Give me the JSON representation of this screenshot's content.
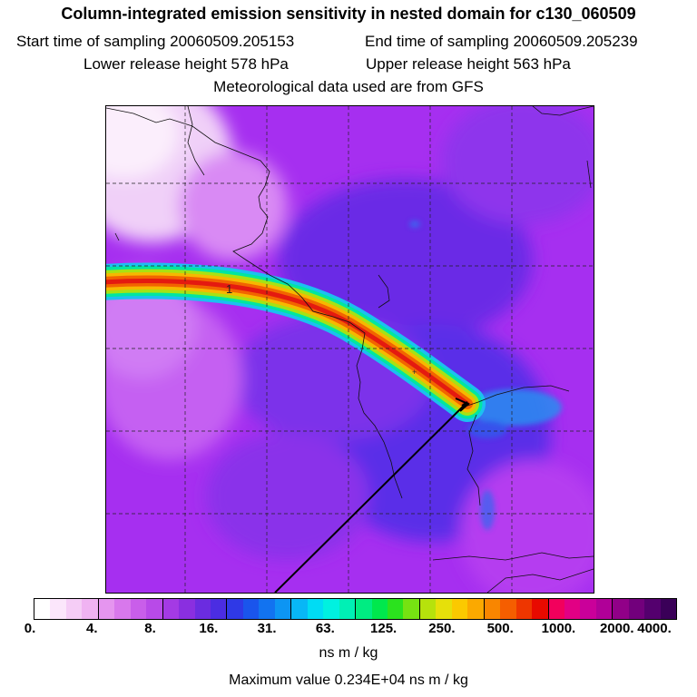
{
  "title": "Column-integrated emission sensitivity in nested domain for c130_060509",
  "start_label": "Start time of sampling 20060509.205153",
  "end_label": "End time of sampling 20060509.205239",
  "lower_label": "Lower release height  578 hPa",
  "upper_label": "Upper release height  563 hPa",
  "met_label": "Meteorological data used are from GFS",
  "map": {
    "contour_label": "1"
  },
  "colorbar": {
    "colors": [
      "#ffffff",
      "#fbe6fb",
      "#f5cdf6",
      "#f0b3f2",
      "#e595ef",
      "#d878ec",
      "#c95eea",
      "#b84ae8",
      "#a43ae4",
      "#8a2fe0",
      "#6b2ce0",
      "#4b2de2",
      "#2f39e6",
      "#1a55ec",
      "#1273f0",
      "#0d95f3",
      "#08b7f6",
      "#00dcf4",
      "#00f1e0",
      "#00f0b5",
      "#00ec82",
      "#00e84d",
      "#2be21e",
      "#76e212",
      "#b6e20c",
      "#e6e00a",
      "#fbc900",
      "#fba900",
      "#f98600",
      "#f55e00",
      "#ee3600",
      "#e80a00",
      "#f2005c",
      "#e20084",
      "#ca009a",
      "#b00098",
      "#910088",
      "#72007c",
      "#54006e",
      "#3a0058"
    ],
    "tick_labels": [
      "0.",
      "4.",
      "8.",
      "16.",
      "31.",
      "63.",
      "125.",
      "250.",
      "500.",
      "1000.",
      "2000.",
      "4000."
    ],
    "units": "ns m / kg"
  },
  "max_value_label": "Maximum value  0.234E+04 ns m / kg"
}
